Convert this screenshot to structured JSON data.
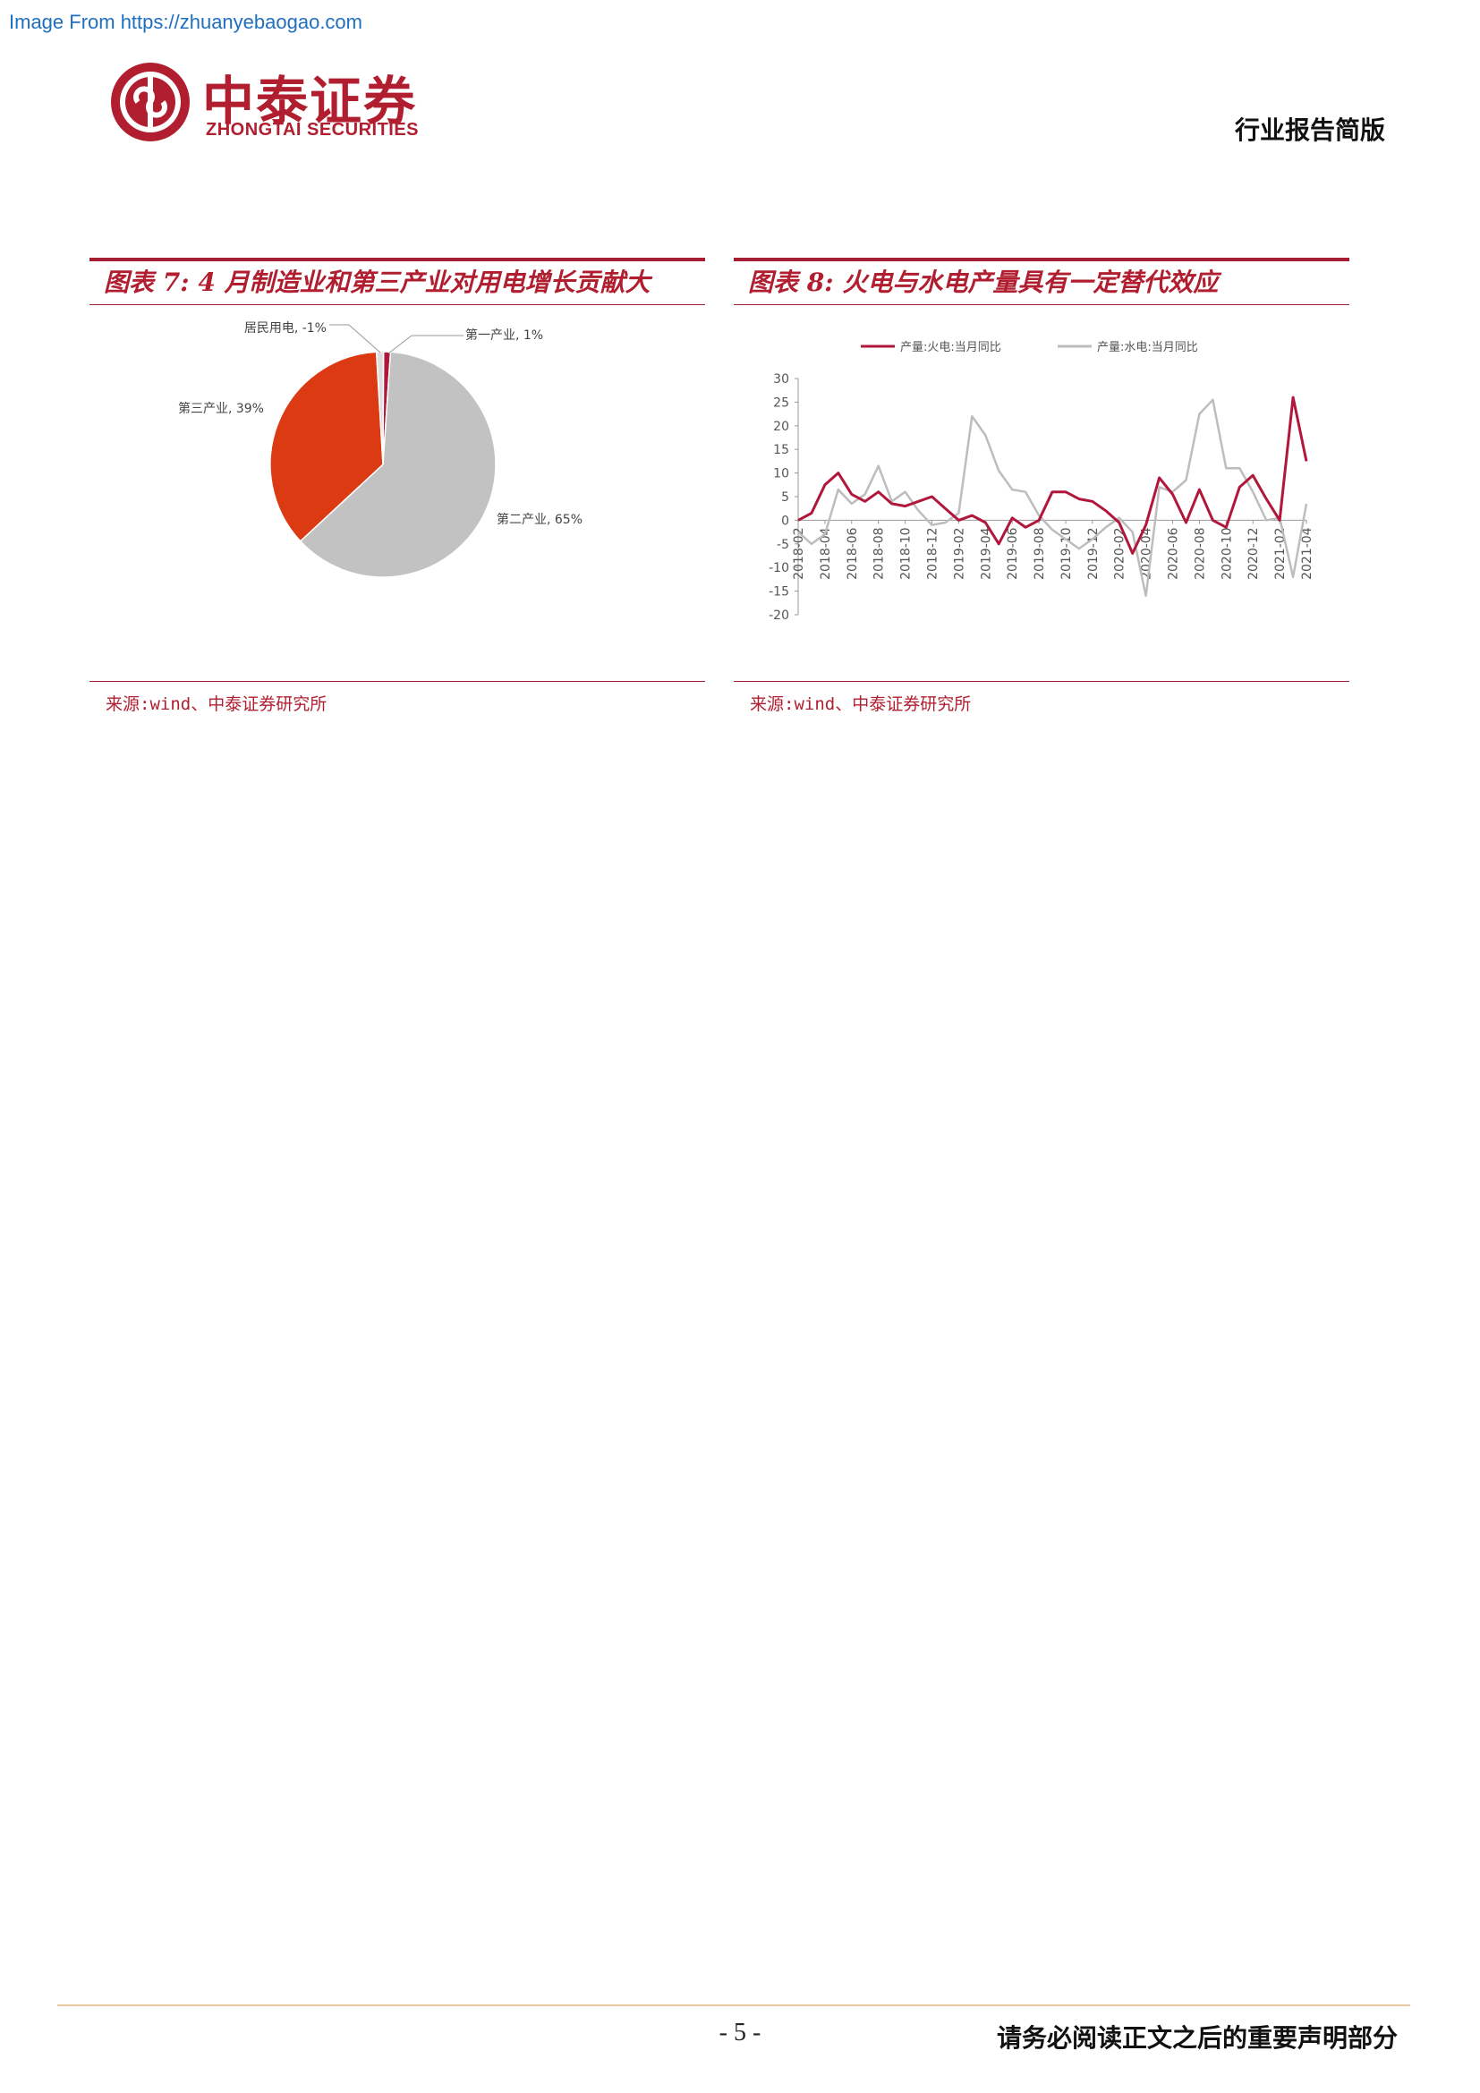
{
  "watermark": "Image From https://zhuanyebaogao.com",
  "header": {
    "logo_cn": "中泰证券",
    "logo_en": "ZHONGTAI SECURITIES",
    "doc_type": "行业报告简版"
  },
  "figure7": {
    "title": "图表 7:  4 月制造业和第三产业对用电增长贡献大",
    "source": "来源:wind、中泰证券研究所"
  },
  "figure8": {
    "title": "图表 8:  火电与水电产量具有一定替代效应",
    "source": "来源:wind、中泰证券研究所"
  },
  "footer": {
    "page_number": "- 5 -",
    "note": "请务必阅读正文之后的重要声明部分"
  },
  "colors": {
    "brand": "#b01e2f",
    "series_thermal": "#b0173b",
    "series_hydro": "#bdbdbd",
    "pie_tertiary": "#db3a12",
    "pie_secondary": "#c2c2c2"
  },
  "chart_data": [
    {
      "type": "pie",
      "title": "",
      "slices": [
        {
          "label": "第一产业, 1%",
          "value": 1,
          "color": "#b0173b"
        },
        {
          "label": "第二产业, 65%",
          "value": 65,
          "color": "#c2c2c2"
        },
        {
          "label": "第三产业, 39%",
          "value": 39,
          "color": "#db3a12"
        },
        {
          "label": "居民用电, -1%",
          "value": -1,
          "color": "#dddddd"
        }
      ]
    },
    {
      "type": "line",
      "title": "",
      "x": [
        "2018-02",
        "2018-03",
        "2018-04",
        "2018-05",
        "2018-06",
        "2018-07",
        "2018-08",
        "2018-09",
        "2018-10",
        "2018-11",
        "2018-12",
        "2019-01",
        "2019-02",
        "2019-03",
        "2019-04",
        "2019-05",
        "2019-06",
        "2019-07",
        "2019-08",
        "2019-09",
        "2019-10",
        "2019-11",
        "2019-12",
        "2020-01",
        "2020-02",
        "2020-03",
        "2020-04",
        "2020-05",
        "2020-06",
        "2020-07",
        "2020-08",
        "2020-09",
        "2020-10",
        "2020-11",
        "2020-12",
        "2021-01",
        "2021-02",
        "2021-03",
        "2021-04"
      ],
      "x_ticks": [
        "2018-02",
        "2018-04",
        "2018-06",
        "2018-08",
        "2018-10",
        "2018-12",
        "2019-02",
        "2019-04",
        "2019-06",
        "2019-08",
        "2019-10",
        "2019-12",
        "2020-02",
        "2020-04",
        "2020-06",
        "2020-08",
        "2020-10",
        "2020-12",
        "2021-02",
        "2021-04"
      ],
      "y_ticks": [
        "30",
        "25",
        "20",
        "15",
        "10",
        "5",
        "0",
        "-5",
        "-10",
        "-15",
        "-20"
      ],
      "ylim": [
        -20,
        30
      ],
      "legend_position": "top",
      "series": [
        {
          "name": "产量:火电:当月同比",
          "color": "#b0173b",
          "values": [
            0,
            1.5,
            7.5,
            10,
            5.5,
            4,
            6,
            3.5,
            3,
            4,
            5,
            2.5,
            0,
            1,
            -0.5,
            -5,
            0.5,
            -1.5,
            0,
            6,
            6,
            4.5,
            4,
            2,
            -0.5,
            -7,
            -1,
            9,
            5.5,
            -0.5,
            6.5,
            0,
            -1.5,
            7,
            9.5,
            4.5,
            0,
            26,
            12.5
          ]
        },
        {
          "name": "产量:水电:当月同比",
          "color": "#bdbdbd",
          "values": [
            -2.5,
            -5,
            -3,
            6.5,
            3.5,
            5.5,
            11.5,
            4,
            6,
            2,
            -1,
            -0.5,
            1.5,
            22,
            18,
            10.5,
            6.5,
            6,
            1,
            -2,
            -4,
            -6,
            -4,
            -1.5,
            0.5,
            -2.5,
            -16,
            7,
            6,
            8.5,
            22.5,
            25.5,
            11,
            11,
            6,
            0,
            0.5,
            -12,
            3.5
          ]
        }
      ]
    }
  ]
}
